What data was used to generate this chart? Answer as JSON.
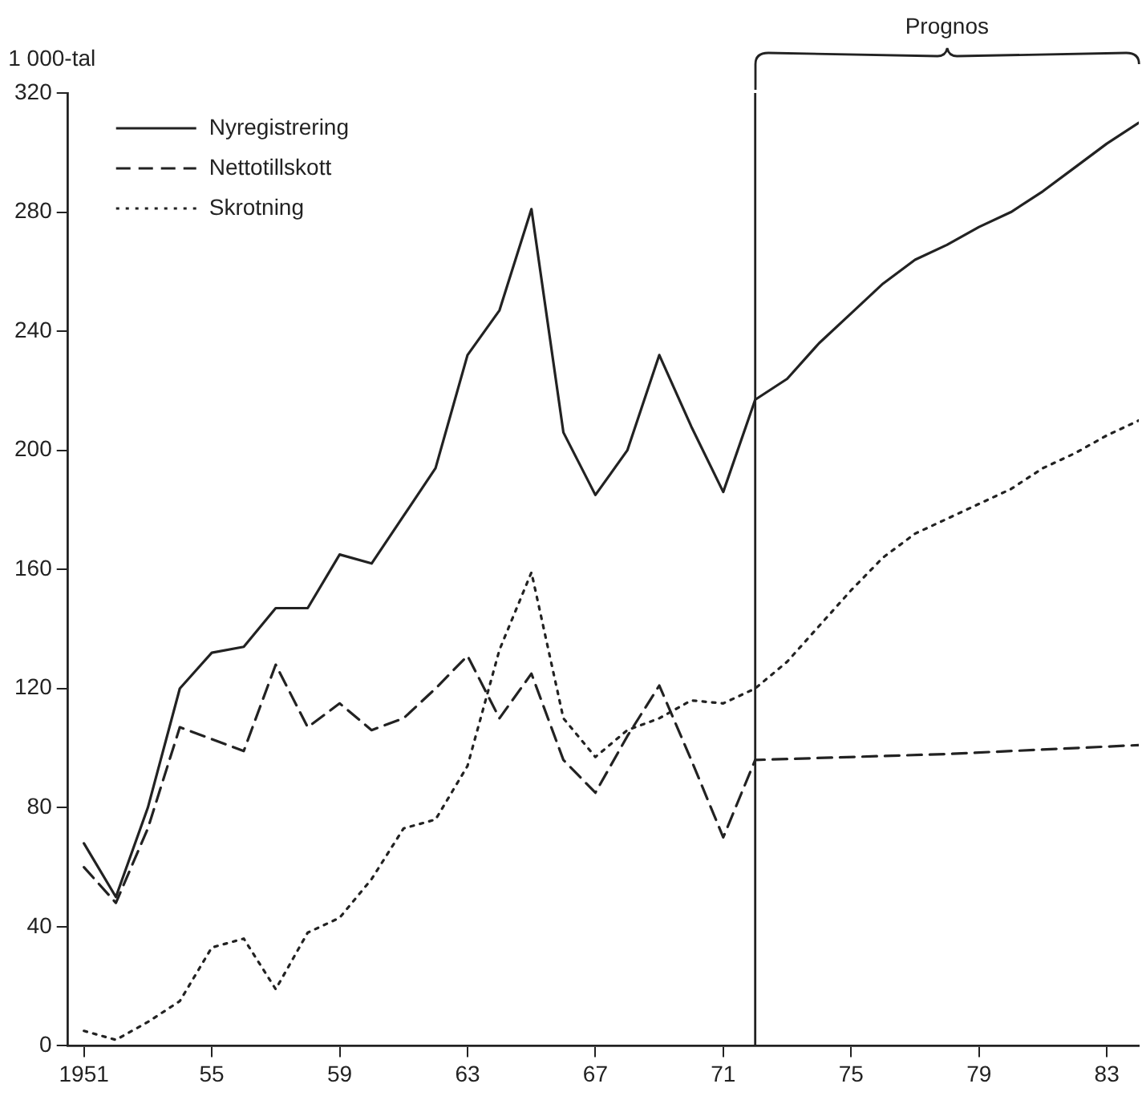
{
  "chart_data": {
    "type": "line",
    "ylabel": "1 000-tal",
    "xlim": [
      1950.5,
      1984
    ],
    "ylim": [
      0,
      320
    ],
    "xticks": [
      1951,
      {
        "value": 1955,
        "label": "55"
      },
      {
        "value": 1959,
        "label": "59"
      },
      {
        "value": 1963,
        "label": "63"
      },
      {
        "value": 1967,
        "label": "67"
      },
      {
        "value": 1971,
        "label": "71"
      },
      {
        "value": 1975,
        "label": "75"
      },
      {
        "value": 1979,
        "label": "79"
      },
      {
        "value": 1983,
        "label": "83"
      }
    ],
    "yticks": [
      0,
      40,
      80,
      120,
      160,
      200,
      240,
      280,
      320
    ],
    "grid": false,
    "legend": "top left",
    "marker": "none",
    "series": [
      {
        "name": "Nyregistrering",
        "color": "#222222",
        "line_style": "solid",
        "x": [
          1951,
          1952,
          1953,
          1954,
          1955,
          1956,
          1957,
          1958,
          1959,
          1960,
          1961,
          1962,
          1963,
          1964,
          1965,
          1966,
          1967,
          1968,
          1969,
          1970,
          1971,
          1972,
          1973,
          1974,
          1975,
          1976,
          1977,
          1978,
          1979,
          1980,
          1981,
          1982,
          1983,
          1984
        ],
        "values": [
          68,
          50,
          80,
          120,
          132,
          134,
          147,
          147,
          165,
          162,
          178,
          194,
          232,
          247,
          281,
          206,
          185,
          200,
          232,
          208,
          186,
          217,
          224,
          236,
          246,
          256,
          264,
          269,
          275,
          280,
          287,
          295,
          303,
          310
        ]
      },
      {
        "name": "Nettotillskott",
        "color": "#222222",
        "line_style": "dashed",
        "x": [
          1951,
          1952,
          1953,
          1954,
          1955,
          1956,
          1957,
          1958,
          1959,
          1960,
          1961,
          1962,
          1963,
          1964,
          1965,
          1966,
          1967,
          1968,
          1969,
          1970,
          1971,
          1972,
          1978,
          1984
        ],
        "values": [
          60,
          48,
          73,
          107,
          103,
          99,
          128,
          107,
          115,
          106,
          110,
          120,
          131,
          110,
          125,
          96,
          85,
          104,
          121,
          96,
          70,
          96,
          98,
          101
        ]
      },
      {
        "name": "Skrotning",
        "color": "#222222",
        "line_style": "dotted",
        "x": [
          1951,
          1952,
          1953,
          1954,
          1955,
          1956,
          1957,
          1958,
          1959,
          1960,
          1961,
          1962,
          1963,
          1964,
          1965,
          1966,
          1967,
          1968,
          1969,
          1970,
          1971,
          1972,
          1973,
          1974,
          1975,
          1976,
          1977,
          1978,
          1979,
          1980,
          1981,
          1982,
          1983,
          1984
        ],
        "values": [
          5,
          2,
          8,
          15,
          33,
          36,
          19,
          38,
          43,
          56,
          73,
          76,
          94,
          133,
          159,
          110,
          97,
          106,
          110,
          116,
          115,
          120,
          129,
          141,
          153,
          164,
          172,
          177,
          182,
          187,
          194,
          199,
          205,
          210
        ]
      }
    ],
    "ref_lines": [
      {
        "axis": "x",
        "value": 1972,
        "color": "#222222"
      }
    ],
    "annotations": [
      "Prognos"
    ]
  }
}
